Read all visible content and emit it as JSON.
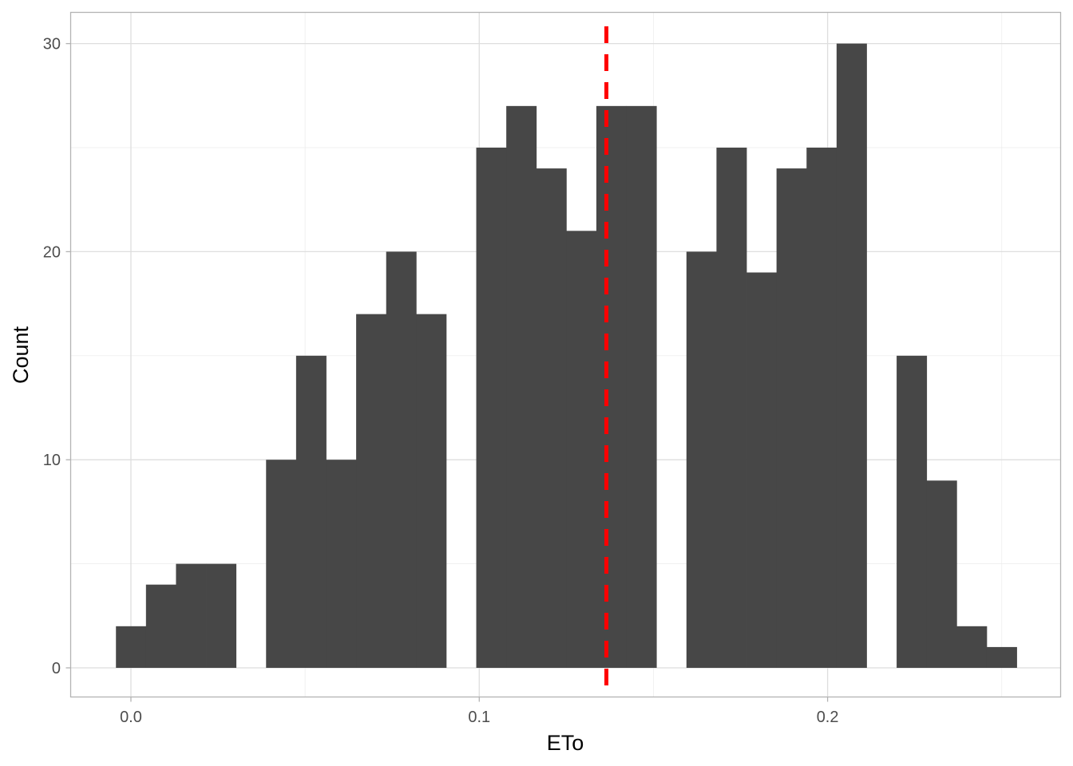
{
  "chart_data": {
    "type": "histogram",
    "xlabel": "ETo",
    "ylabel": "Count",
    "xlim": [
      -0.0173,
      0.2669
    ],
    "ylim": [
      -1.4,
      31.5
    ],
    "x_ticks": [
      {
        "value": 0.0,
        "label": "0.0"
      },
      {
        "value": 0.1,
        "label": "0.1"
      },
      {
        "value": 0.2,
        "label": "0.2"
      }
    ],
    "x_minor_ticks": [
      0.05,
      0.15,
      0.25
    ],
    "y_ticks": [
      {
        "value": 0,
        "label": "0"
      },
      {
        "value": 10,
        "label": "10"
      },
      {
        "value": 20,
        "label": "20"
      },
      {
        "value": 30,
        "label": "30"
      }
    ],
    "y_minor_ticks": [
      5,
      15,
      25
    ],
    "bin_width": 0.00862,
    "bin_start": -0.0043,
    "counts": [
      2,
      4,
      5,
      5,
      0,
      10,
      15,
      10,
      17,
      20,
      17,
      0,
      25,
      27,
      24,
      21,
      27,
      27,
      0,
      20,
      25,
      19,
      24,
      25,
      30,
      0,
      15,
      9,
      2,
      1
    ],
    "reference_line": {
      "x": 0.1365,
      "style": "dashed",
      "color": "#ff0000"
    },
    "bar_color": "#474747",
    "grid": true
  }
}
